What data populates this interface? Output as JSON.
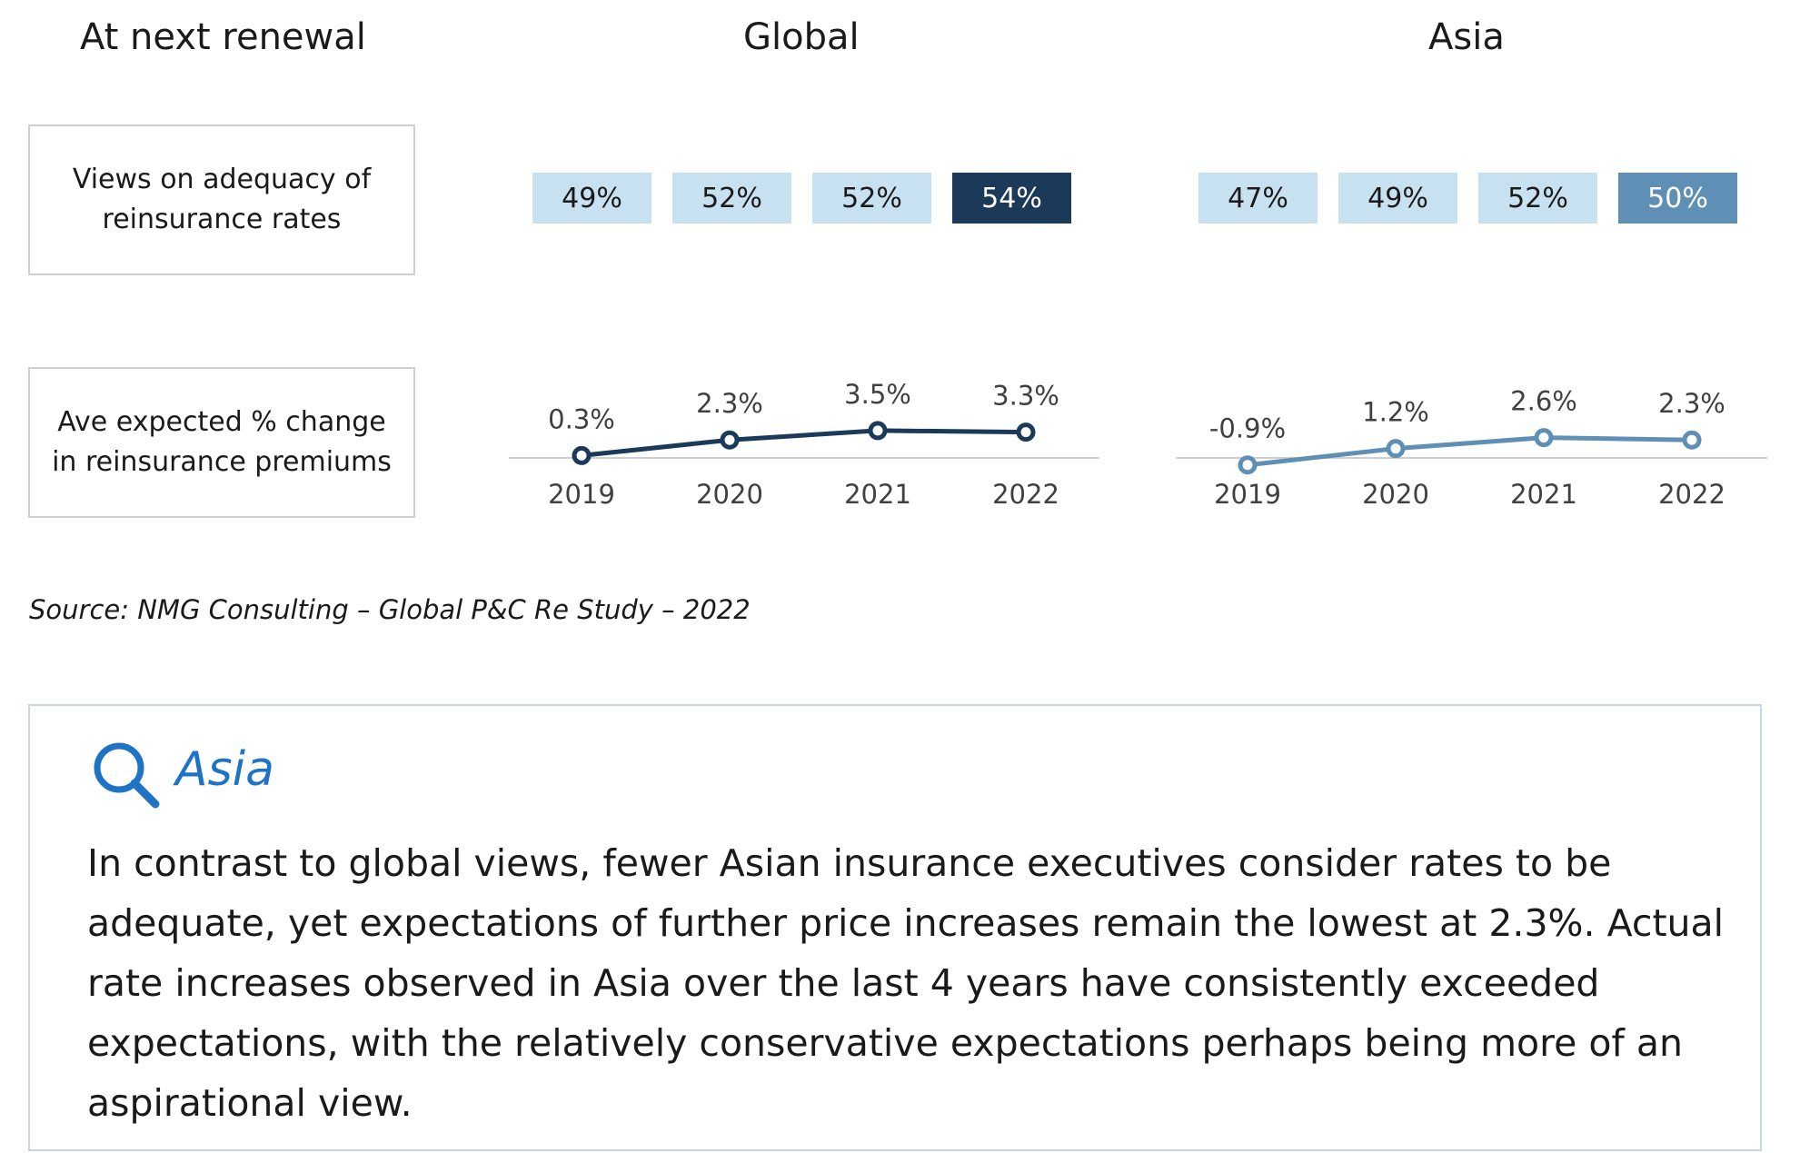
{
  "header": {
    "row_title": "At next renewal",
    "global_title": "Global",
    "asia_title": "Asia"
  },
  "rows": {
    "adequacy_label": "Views on adequacy of reinsurance rates",
    "premium_label": "Ave expected % change in reinsurance premiums"
  },
  "colors": {
    "global_line": "#1b3a5a",
    "asia_line": "#5f8fb4",
    "pill_light": "#c8e1f1",
    "global_pill_highlight": "#1b3a5a",
    "asia_pill_highlight": "#5f8fb4",
    "baseline": "#cfcfcf",
    "label_text": "#404040",
    "accent_blue": "#1f73c7"
  },
  "chart_data": [
    {
      "type": "table",
      "panel": "Global",
      "row": "Views on adequacy of reinsurance rates",
      "labels": [
        "49%",
        "52%",
        "52%",
        "54%"
      ],
      "values": [
        49,
        52,
        52,
        54
      ]
    },
    {
      "type": "table",
      "panel": "Asia",
      "row": "Views on adequacy of reinsurance rates",
      "labels": [
        "47%",
        "49%",
        "52%",
        "50%"
      ],
      "values": [
        47,
        49,
        52,
        50
      ]
    },
    {
      "type": "line",
      "panel": "Global",
      "row": "Ave expected % change in reinsurance premiums",
      "x": [
        "2019",
        "2020",
        "2021",
        "2022"
      ],
      "values": [
        0.3,
        2.3,
        3.5,
        3.3
      ],
      "labels": [
        "0.3%",
        "2.3%",
        "3.5%",
        "3.3%"
      ]
    },
    {
      "type": "line",
      "panel": "Asia",
      "row": "Ave expected % change in reinsurance premiums",
      "x": [
        "2019",
        "2020",
        "2021",
        "2022"
      ],
      "values": [
        -0.9,
        1.2,
        2.6,
        2.3
      ],
      "labels": [
        "-0.9%",
        "1.2%",
        "2.6%",
        "2.3%"
      ]
    }
  ],
  "source": "Source: NMG Consulting – Global P&C Re Study – 2022",
  "insight": {
    "icon": "magnifier-icon",
    "title": "Asia",
    "body": "In contrast to global views, fewer Asian insurance executives consider rates to be adequate, yet expectations of further price increases remain the lowest at 2.3%. Actual rate increases observed in Asia over the last 4 years have consistently exceeded expectations, with the relatively conservative expectations perhaps being more of an aspirational view."
  }
}
